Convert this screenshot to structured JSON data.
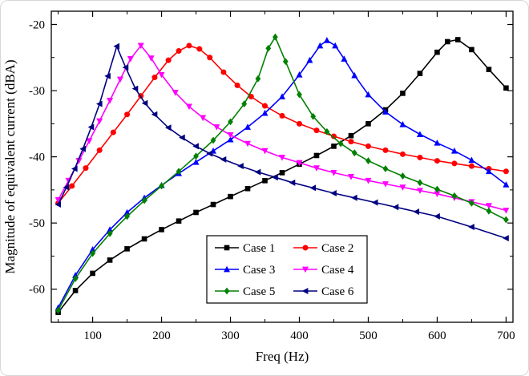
{
  "figure": {
    "background": "#ffffff",
    "border_color": "#d6d6d6"
  },
  "chart_data": {
    "type": "line",
    "title": "",
    "xlabel": "Freq (Hz)",
    "ylabel": "Magnitude of equivalent current (dBA)",
    "xlim": [
      40,
      710
    ],
    "ylim": [
      -65,
      -18
    ],
    "xticks": [
      100,
      200,
      300,
      400,
      500,
      600,
      700
    ],
    "xminor_ticks": [
      50,
      150,
      250,
      350,
      450,
      550,
      650
    ],
    "yticks": [
      -60,
      -50,
      -40,
      -30,
      -20
    ],
    "yminor_ticks": [
      -65,
      -55,
      -45,
      -35,
      -25
    ],
    "grid": false,
    "legend": {
      "position": "inside-bottom-center",
      "labels": [
        "Case 1",
        "Case 2",
        "Case 3",
        "Case 4",
        "Case 5",
        "Case 6"
      ]
    },
    "series": [
      {
        "name": "Case 1",
        "color": "#000000",
        "marker": "square",
        "peak_hz": 620,
        "x": [
          50,
          75,
          100,
          125,
          150,
          175,
          200,
          225,
          250,
          275,
          300,
          325,
          350,
          375,
          400,
          425,
          450,
          475,
          500,
          525,
          550,
          575,
          600,
          615,
          630,
          650,
          675,
          700
        ],
        "y": [
          -63.5,
          -60.2,
          -57.6,
          -55.6,
          -53.9,
          -52.4,
          -51.0,
          -49.7,
          -48.4,
          -47.2,
          -46.0,
          -44.8,
          -43.6,
          -42.4,
          -41.1,
          -39.8,
          -38.4,
          -36.8,
          -35.0,
          -32.9,
          -30.4,
          -27.4,
          -24.2,
          -22.6,
          -22.3,
          -23.8,
          -26.8,
          -29.6
        ]
      },
      {
        "name": "Case 2",
        "color": "#ff0000",
        "marker": "circle",
        "peak_hz": 240,
        "x": [
          50,
          70,
          90,
          110,
          130,
          150,
          170,
          190,
          210,
          225,
          240,
          255,
          270,
          290,
          310,
          330,
          350,
          375,
          400,
          425,
          450,
          475,
          500,
          525,
          550,
          575,
          600,
          625,
          650,
          675,
          700
        ],
        "y": [
          -47.0,
          -44.4,
          -41.7,
          -39.0,
          -36.3,
          -33.6,
          -30.8,
          -28.0,
          -25.4,
          -24.0,
          -23.2,
          -23.7,
          -25.0,
          -27.2,
          -29.2,
          -30.9,
          -32.3,
          -33.8,
          -35.0,
          -36.0,
          -36.9,
          -37.7,
          -38.4,
          -39.0,
          -39.6,
          -40.1,
          -40.6,
          -41.0,
          -41.4,
          -41.8,
          -42.2
        ]
      },
      {
        "name": "Case 3",
        "color": "#0000ff",
        "marker": "triangle-up",
        "peak_hz": 440,
        "x": [
          50,
          75,
          100,
          125,
          150,
          175,
          200,
          225,
          250,
          275,
          300,
          325,
          350,
          375,
          400,
          415,
          430,
          440,
          452,
          465,
          480,
          500,
          525,
          550,
          575,
          600,
          625,
          650,
          675,
          700
        ],
        "y": [
          -62.8,
          -57.9,
          -54.0,
          -51.0,
          -48.4,
          -46.2,
          -44.3,
          -42.5,
          -40.8,
          -39.1,
          -37.4,
          -35.5,
          -33.4,
          -30.9,
          -27.6,
          -25.4,
          -23.2,
          -22.4,
          -23.2,
          -25.2,
          -27.7,
          -30.6,
          -33.2,
          -35.1,
          -36.6,
          -37.9,
          -39.1,
          -40.5,
          -42.2,
          -44.2
        ]
      },
      {
        "name": "Case 4",
        "color": "#ff00ff",
        "marker": "triangle-down",
        "peak_hz": 170,
        "x": [
          50,
          65,
          80,
          95,
          110,
          125,
          140,
          155,
          170,
          185,
          200,
          220,
          240,
          260,
          280,
          300,
          325,
          350,
          375,
          400,
          425,
          450,
          475,
          500,
          525,
          550,
          575,
          600,
          625,
          650,
          675,
          700
        ],
        "y": [
          -46.5,
          -43.6,
          -40.6,
          -37.6,
          -34.6,
          -31.5,
          -28.3,
          -25.2,
          -23.2,
          -25.1,
          -27.6,
          -30.3,
          -32.4,
          -34.1,
          -35.5,
          -36.7,
          -38.0,
          -39.1,
          -40.1,
          -40.9,
          -41.7,
          -42.4,
          -43.0,
          -43.6,
          -44.1,
          -44.6,
          -45.1,
          -45.6,
          -46.2,
          -46.8,
          -47.4,
          -48.1
        ]
      },
      {
        "name": "Case 5",
        "color": "#008000",
        "marker": "diamond",
        "peak_hz": 360,
        "x": [
          50,
          75,
          100,
          125,
          150,
          175,
          200,
          225,
          250,
          275,
          300,
          320,
          340,
          355,
          365,
          380,
          400,
          420,
          440,
          460,
          480,
          500,
          525,
          550,
          575,
          600,
          625,
          650,
          675,
          700
        ],
        "y": [
          -63.2,
          -58.4,
          -54.6,
          -51.6,
          -49.0,
          -46.6,
          -44.4,
          -42.2,
          -39.9,
          -37.5,
          -34.7,
          -32.0,
          -28.2,
          -23.6,
          -21.9,
          -25.6,
          -30.6,
          -33.9,
          -36.2,
          -38.0,
          -39.4,
          -40.6,
          -41.8,
          -42.9,
          -43.9,
          -44.9,
          -45.9,
          -47.0,
          -48.2,
          -49.5
        ]
      },
      {
        "name": "Case 6",
        "color": "#000080",
        "marker": "triangle-left",
        "peak_hz": 135,
        "x": [
          50,
          62,
          74,
          86,
          98,
          110,
          122,
          135,
          148,
          162,
          176,
          190,
          210,
          230,
          250,
          270,
          290,
          315,
          340,
          365,
          390,
          420,
          450,
          480,
          510,
          540,
          570,
          600,
          650,
          700
        ],
        "y": [
          -47.2,
          -44.6,
          -41.8,
          -38.8,
          -35.5,
          -32.0,
          -27.8,
          -23.3,
          -26.5,
          -29.7,
          -31.9,
          -33.6,
          -35.6,
          -37.1,
          -38.4,
          -39.5,
          -40.4,
          -41.4,
          -42.3,
          -43.1,
          -43.9,
          -44.7,
          -45.5,
          -46.2,
          -46.9,
          -47.6,
          -48.3,
          -49.0,
          -50.6,
          -52.3
        ]
      }
    ]
  }
}
